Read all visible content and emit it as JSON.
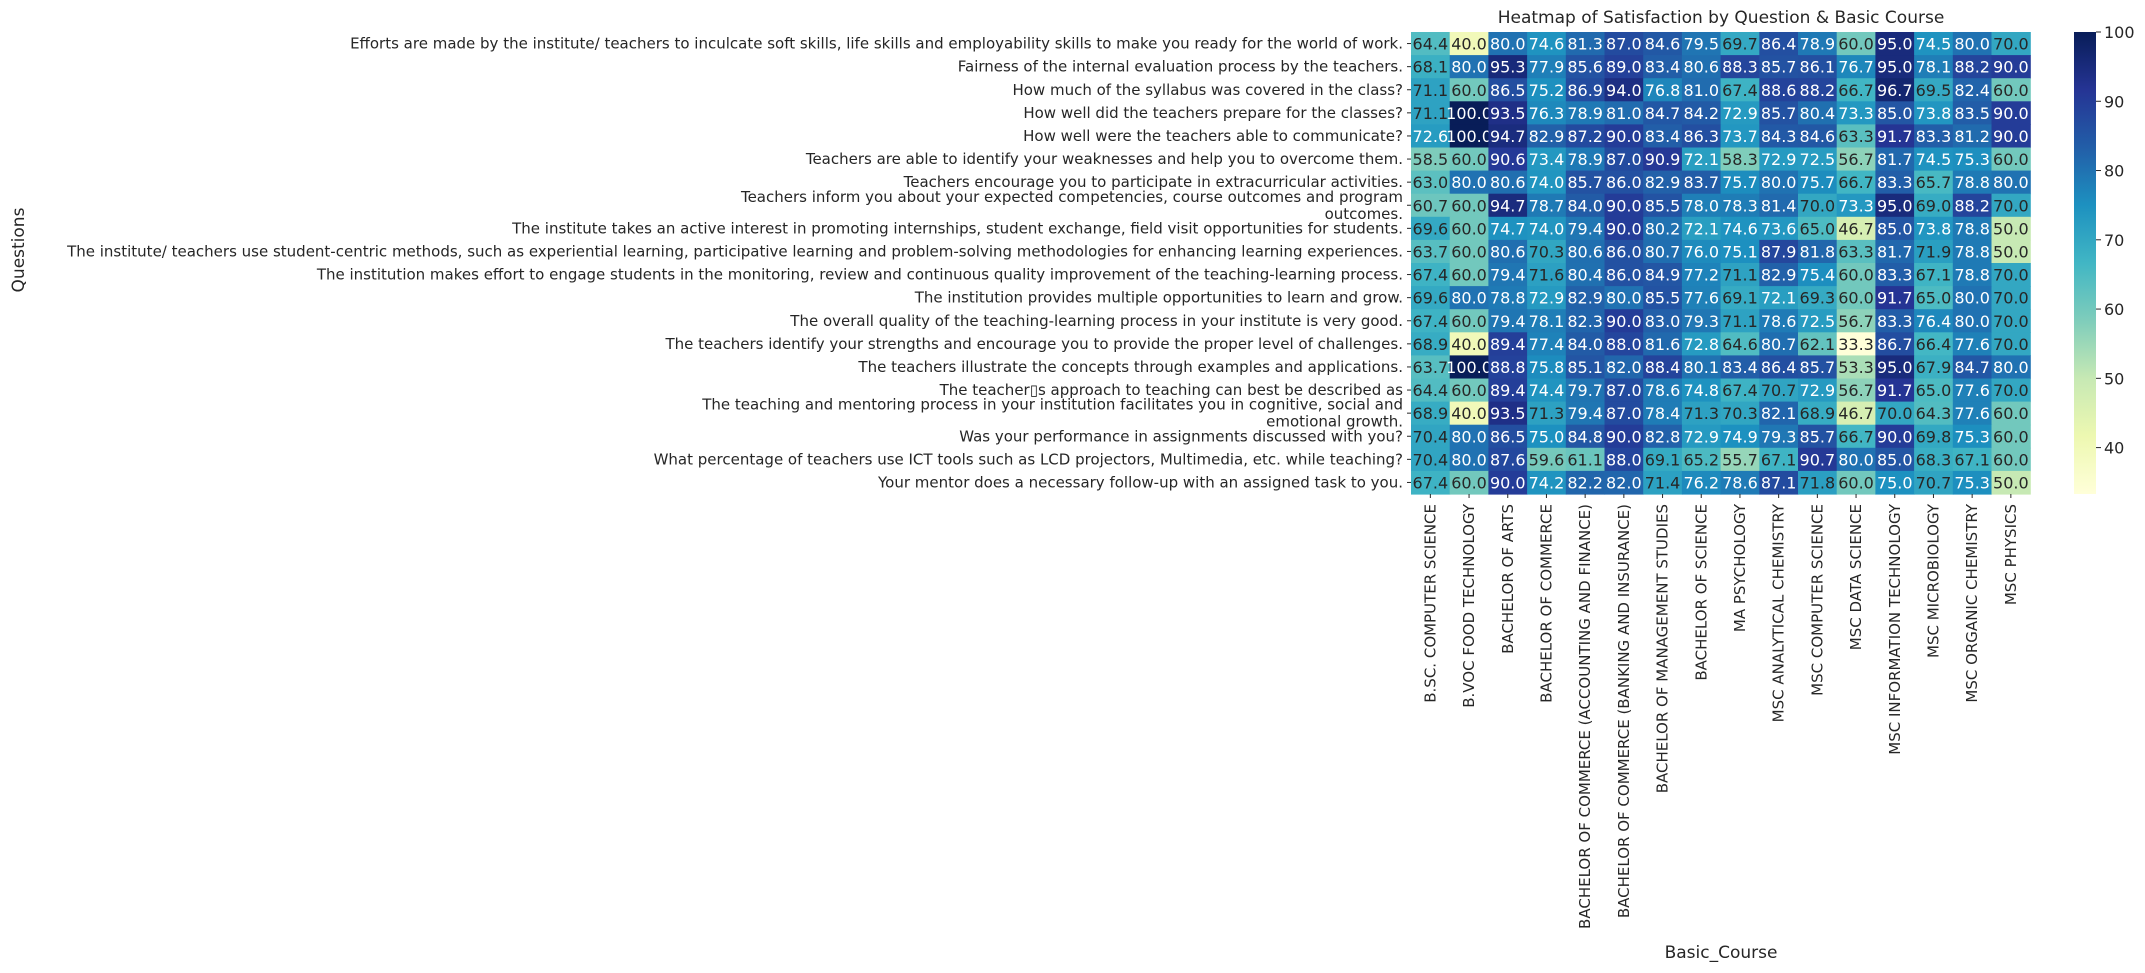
{
  "chart_data": {
    "type": "heatmap",
    "title": "Heatmap of Satisfaction by Question & Basic Course",
    "xlabel": "Basic_Course",
    "ylabel": "Questions",
    "colormap": "YlGnBu",
    "value_range": [
      33.3,
      100.0
    ],
    "colorbar_ticks": [
      40,
      50,
      60,
      70,
      80,
      90,
      100
    ],
    "rows": [
      [
        "Efforts are made by the institute/ teachers to inculcate soft skills, life skills and employability skills to make you ready for the world of work."
      ],
      [
        "Fairness of the internal evaluation process by the teachers."
      ],
      [
        "How much of the syllabus was covered in the class?"
      ],
      [
        "How well did the teachers prepare for the classes?"
      ],
      [
        "How well were the teachers able to communicate?"
      ],
      [
        "Teachers are able to identify your weaknesses and help you to overcome them."
      ],
      [
        "Teachers encourage you to participate in extracurricular activities."
      ],
      [
        "Teachers inform you about your expected competencies, course outcomes and program",
        "outcomes."
      ],
      [
        "The institute takes an active interest in promoting internships, student exchange, field visit opportunities for students."
      ],
      [
        "The institute/ teachers use student-centric methods, such as experiential learning, participative learning and problem-solving methodologies for enhancing learning experiences."
      ],
      [
        "The institution makes effort to engage students in the monitoring, review and continuous quality improvement of the teaching-learning process."
      ],
      [
        "The institution provides multiple opportunities to learn and grow."
      ],
      [
        "The overall quality of the teaching-learning process in your institute is very good."
      ],
      [
        "The teachers identify your strengths and encourage you to provide the proper level of challenges."
      ],
      [
        "The teachers illustrate the concepts through examples and applications."
      ],
      [
        "The teacher▯s approach to teaching can best be described as"
      ],
      [
        "The teaching and mentoring process in your institution facilitates you in cognitive, social and",
        "emotional growth."
      ],
      [
        "Was your performance in assignments discussed with you?"
      ],
      [
        "What percentage of teachers use ICT tools such as LCD projectors, Multimedia, etc. while teaching?"
      ],
      [
        "Your mentor does a necessary follow-up with an assigned task to you."
      ]
    ],
    "columns": [
      "B.SC. COMPUTER SCIENCE",
      "B.VOC FOOD TECHNOLOGY",
      "BACHELOR OF ARTS",
      "BACHELOR OF COMMERCE",
      "BACHELOR OF COMMERCE (ACCOUNTING AND FINANCE)",
      "BACHELOR OF COMMERCE (BANKING AND INSURANCE)",
      "BACHELOR OF MANAGEMENT STUDIES",
      "BACHELOR OF SCIENCE",
      "MA PSYCHOLOGY",
      "MSC ANALYTICAL CHEMISTRY",
      "MSC COMPUTER SCIENCE",
      "MSC DATA SCIENCE",
      "MSC INFORMATION TECHNOLOGY",
      "MSC MICROBIOLOGY",
      "MSC ORGANIC CHEMISTRY",
      "MSC PHYSICS"
    ],
    "values": [
      [
        64.4,
        40.0,
        80.0,
        74.6,
        81.3,
        87.0,
        84.6,
        79.5,
        69.7,
        86.4,
        78.9,
        60.0,
        95.0,
        74.5,
        80.0,
        70.0
      ],
      [
        68.1,
        80.0,
        95.3,
        77.9,
        85.6,
        89.0,
        83.4,
        80.6,
        88.3,
        85.7,
        86.1,
        76.7,
        95.0,
        78.1,
        88.2,
        90.0
      ],
      [
        71.1,
        60.0,
        86.5,
        75.2,
        86.9,
        94.0,
        76.8,
        81.0,
        67.4,
        88.6,
        88.2,
        66.7,
        96.7,
        69.5,
        82.4,
        60.0
      ],
      [
        71.1,
        100.0,
        93.5,
        76.3,
        78.9,
        81.0,
        84.7,
        84.2,
        72.9,
        85.7,
        80.4,
        73.3,
        85.0,
        73.8,
        83.5,
        90.0
      ],
      [
        72.6,
        100.0,
        94.7,
        82.9,
        87.2,
        90.0,
        83.4,
        86.3,
        73.7,
        84.3,
        84.6,
        63.3,
        91.7,
        83.3,
        81.2,
        90.0
      ],
      [
        58.5,
        60.0,
        90.6,
        73.4,
        78.9,
        87.0,
        90.9,
        72.1,
        58.3,
        72.9,
        72.5,
        56.7,
        81.7,
        74.5,
        75.3,
        60.0
      ],
      [
        63.0,
        80.0,
        80.6,
        74.0,
        85.7,
        86.0,
        82.9,
        83.7,
        75.7,
        80.0,
        75.7,
        66.7,
        83.3,
        65.7,
        78.8,
        80.0
      ],
      [
        60.7,
        60.0,
        94.7,
        78.7,
        84.0,
        90.0,
        85.5,
        78.0,
        78.3,
        81.4,
        70.0,
        73.3,
        95.0,
        69.0,
        88.2,
        70.0
      ],
      [
        69.6,
        60.0,
        74.7,
        74.0,
        79.4,
        90.0,
        80.2,
        72.1,
        74.6,
        73.6,
        65.0,
        46.7,
        85.0,
        73.8,
        78.8,
        50.0
      ],
      [
        63.7,
        60.0,
        80.6,
        70.3,
        80.6,
        86.0,
        80.7,
        76.0,
        75.1,
        87.9,
        81.8,
        63.3,
        81.7,
        71.9,
        78.8,
        50.0
      ],
      [
        67.4,
        60.0,
        79.4,
        71.6,
        80.4,
        86.0,
        84.9,
        77.2,
        71.1,
        82.9,
        75.4,
        60.0,
        83.3,
        67.1,
        78.8,
        70.0
      ],
      [
        69.6,
        80.0,
        78.8,
        72.9,
        82.9,
        80.0,
        85.5,
        77.6,
        69.1,
        72.1,
        69.3,
        60.0,
        91.7,
        65.0,
        80.0,
        70.0
      ],
      [
        67.4,
        60.0,
        79.4,
        78.1,
        82.3,
        90.0,
        83.0,
        79.3,
        71.1,
        78.6,
        72.5,
        56.7,
        83.3,
        76.4,
        80.0,
        70.0
      ],
      [
        68.9,
        40.0,
        89.4,
        77.4,
        84.0,
        88.0,
        81.6,
        72.8,
        64.6,
        80.7,
        62.1,
        33.3,
        86.7,
        66.4,
        77.6,
        70.0
      ],
      [
        63.7,
        100.0,
        88.8,
        75.8,
        85.1,
        82.0,
        88.4,
        80.1,
        83.4,
        86.4,
        85.7,
        53.3,
        95.0,
        67.9,
        84.7,
        80.0
      ],
      [
        64.4,
        60.0,
        89.4,
        74.4,
        79.7,
        87.0,
        78.6,
        74.8,
        67.4,
        70.7,
        72.9,
        56.7,
        91.7,
        65.0,
        77.6,
        70.0
      ],
      [
        68.9,
        40.0,
        93.5,
        71.3,
        79.4,
        87.0,
        78.4,
        71.3,
        70.3,
        82.1,
        68.9,
        46.7,
        70.0,
        64.3,
        77.6,
        60.0
      ],
      [
        70.4,
        80.0,
        86.5,
        75.0,
        84.8,
        90.0,
        82.8,
        72.9,
        74.9,
        79.3,
        85.7,
        66.7,
        90.0,
        69.8,
        75.3,
        60.0
      ],
      [
        70.4,
        80.0,
        87.6,
        59.6,
        61.1,
        88.0,
        69.1,
        65.2,
        55.7,
        67.1,
        90.7,
        80.0,
        85.0,
        68.3,
        67.1,
        60.0
      ],
      [
        67.4,
        60.0,
        90.0,
        74.2,
        82.2,
        82.0,
        71.4,
        76.2,
        78.6,
        87.1,
        71.8,
        60.0,
        75.0,
        70.7,
        75.3,
        50.0
      ]
    ]
  }
}
